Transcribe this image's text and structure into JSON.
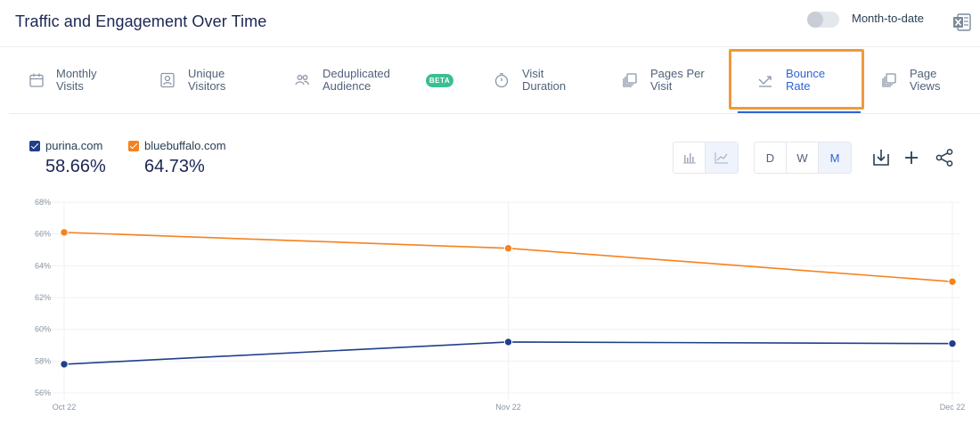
{
  "header": {
    "title": "Traffic and Engagement Over Time",
    "toggle_label": "Month-to-date",
    "toggle_on": false
  },
  "tabs": [
    {
      "id": "monthly-visits",
      "label": "Monthly\nVisits",
      "icon": "calendar-icon"
    },
    {
      "id": "unique-visitors",
      "label": "Unique\nVisitors",
      "icon": "person-card-icon"
    },
    {
      "id": "deduplicated-audience",
      "label": "Deduplicated\nAudience",
      "icon": "people-icon",
      "badge": "BETA"
    },
    {
      "id": "visit-duration",
      "label": "Visit\nDuration",
      "icon": "stopwatch-icon"
    },
    {
      "id": "pages-per-visit",
      "label": "Pages Per\nVisit",
      "icon": "pages-icon"
    },
    {
      "id": "bounce-rate",
      "label": "Bounce\nRate",
      "icon": "bounce-icon",
      "active": true
    },
    {
      "id": "page-views",
      "label": "Page\nViews",
      "icon": "pages-icon"
    }
  ],
  "legend": [
    {
      "name": "purina.com",
      "value": "58.66%",
      "color": "#1f3f8b"
    },
    {
      "name": "bluebuffalo.com",
      "value": "64.73%",
      "color": "#f5821f"
    }
  ],
  "toolbar": {
    "chart_types": [
      {
        "id": "bar",
        "icon": "bar-chart-icon",
        "selected": false
      },
      {
        "id": "line",
        "icon": "line-chart-icon",
        "selected": true
      }
    ],
    "granularity": [
      {
        "label": "D",
        "selected": false
      },
      {
        "label": "W",
        "selected": false
      },
      {
        "label": "M",
        "selected": true
      }
    ],
    "actions": [
      "download-icon",
      "plus-icon",
      "share-icon"
    ]
  },
  "colors": {
    "accent": "#2f63d8",
    "highlight": "#f0993a",
    "purina": "#1f3f8b",
    "bluebuffalo": "#f5821f"
  },
  "chart_data": {
    "type": "line",
    "x": [
      "Oct 22",
      "Nov 22",
      "Dec 22"
    ],
    "series": [
      {
        "name": "purina.com",
        "color": "#1f3f8b",
        "values": [
          57.8,
          59.2,
          59.1
        ]
      },
      {
        "name": "bluebuffalo.com",
        "color": "#f5821f",
        "values": [
          66.1,
          65.1,
          63.0
        ]
      }
    ],
    "y_ticks": [
      "56%",
      "58%",
      "60%",
      "62%",
      "64%",
      "66%",
      "68%"
    ],
    "ylim": [
      56,
      68
    ],
    "grid": true,
    "legend": "top-left"
  }
}
